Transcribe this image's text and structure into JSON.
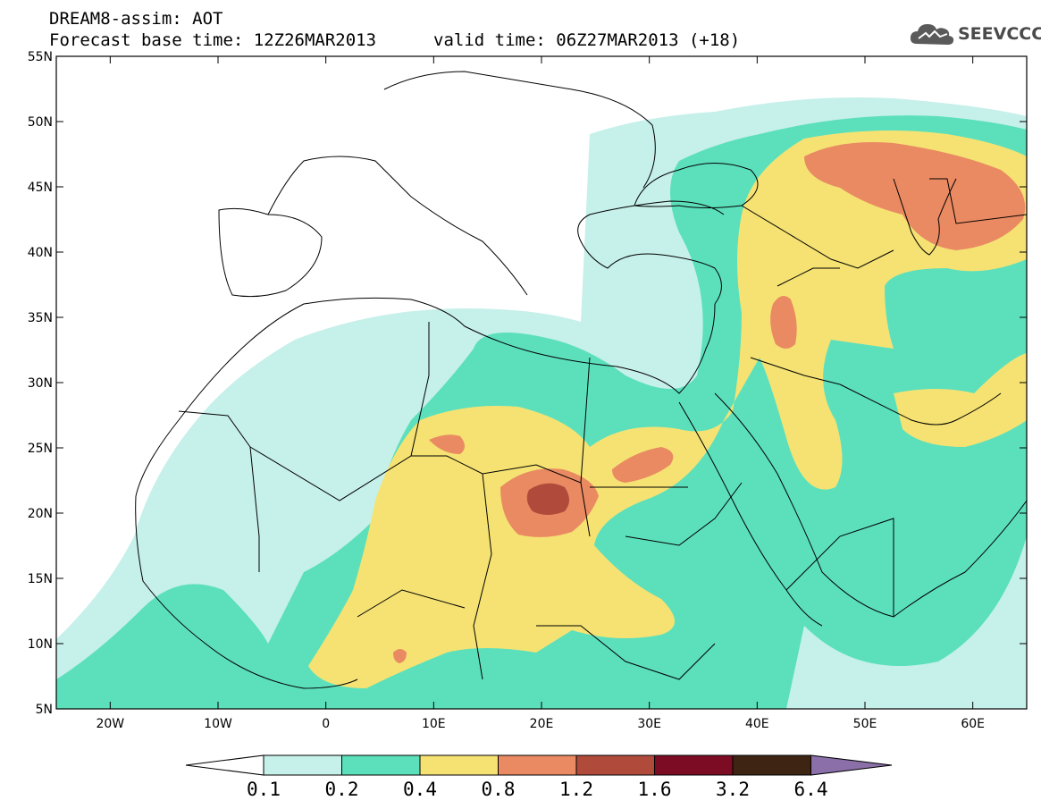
{
  "title": {
    "line1": "DREAM8-assim: AOT",
    "base_time": "Forecast base time: 12Z26MAR2013",
    "valid_time": "valid time: 06Z27MAR2013 (+18)"
  },
  "logo": {
    "text": "SEEVCCC",
    "icon": "cloud-icon"
  },
  "map": {
    "lon_range": [
      -25,
      65
    ],
    "lat_range": [
      5,
      55
    ],
    "lon_ticks": [
      {
        "lon": -20,
        "label": "20W"
      },
      {
        "lon": -10,
        "label": "10W"
      },
      {
        "lon": 0,
        "label": "0"
      },
      {
        "lon": 10,
        "label": "10E"
      },
      {
        "lon": 20,
        "label": "20E"
      },
      {
        "lon": 30,
        "label": "30E"
      },
      {
        "lon": 40,
        "label": "40E"
      },
      {
        "lon": 50,
        "label": "50E"
      },
      {
        "lon": 60,
        "label": "60E"
      }
    ],
    "lat_ticks": [
      {
        "lat": 55,
        "label": "55N"
      },
      {
        "lat": 50,
        "label": "50N"
      },
      {
        "lat": 45,
        "label": "45N"
      },
      {
        "lat": 40,
        "label": "40N"
      },
      {
        "lat": 35,
        "label": "35N"
      },
      {
        "lat": 30,
        "label": "30N"
      },
      {
        "lat": 25,
        "label": "25N"
      },
      {
        "lat": 20,
        "label": "20N"
      },
      {
        "lat": 15,
        "label": "15N"
      },
      {
        "lat": 10,
        "label": "10N"
      },
      {
        "lat": 5,
        "label": "5N"
      }
    ]
  },
  "colors": {
    "c01": "#c6f0ea",
    "c02": "#5ce0bc",
    "c04": "#f5e273",
    "c08": "#ea8a62",
    "c12": "#b04b3b",
    "c16": "#7c0b24",
    "c32": "#3d2413",
    "c64": "#8a6fa8"
  },
  "colorbar": {
    "labels": [
      "0.1",
      "0.2",
      "0.4",
      "0.8",
      "1.2",
      "1.6",
      "3.2",
      "6.4"
    ],
    "colors": [
      "#ffffff",
      "#c6f0ea",
      "#5ce0bc",
      "#f5e273",
      "#ea8a62",
      "#b04b3b",
      "#7c0b24",
      "#3d2413",
      "#8a6fa8"
    ]
  }
}
